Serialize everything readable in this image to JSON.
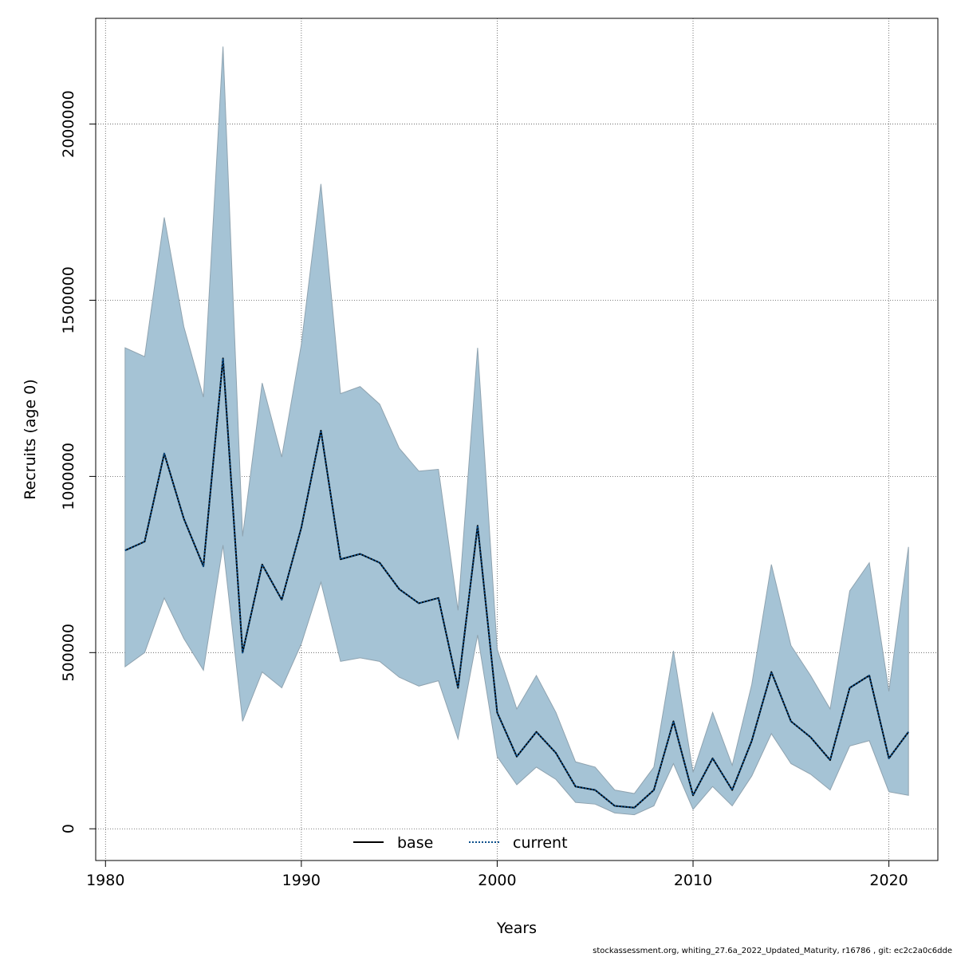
{
  "chart_data": {
    "type": "area",
    "title": "",
    "xlabel": "Years",
    "ylabel": "Recruits (age 0)",
    "xlim": [
      1979.5,
      2022.5
    ],
    "ylim": [
      -90000,
      2300000
    ],
    "x_ticks": [
      1980,
      1990,
      2000,
      2010,
      2020
    ],
    "y_ticks": [
      0,
      500000,
      1000000,
      1500000,
      2000000
    ],
    "x_tick_labels": [
      "1980",
      "1990",
      "2000",
      "2010",
      "2020"
    ],
    "y_tick_labels": [
      "0",
      "500000",
      "1000000",
      "1500000",
      "2000000"
    ],
    "grid": true,
    "legend_position": "bottom-center",
    "years": [
      1981,
      1982,
      1983,
      1984,
      1985,
      1986,
      1987,
      1988,
      1989,
      1990,
      1991,
      1992,
      1993,
      1994,
      1995,
      1996,
      1997,
      1998,
      1999,
      2000,
      2001,
      2002,
      2003,
      2004,
      2005,
      2006,
      2007,
      2008,
      2009,
      2010,
      2011,
      2012,
      2013,
      2014,
      2015,
      2016,
      2017,
      2018,
      2019,
      2020,
      2021
    ],
    "series": [
      {
        "name": "base",
        "line_style": "solid",
        "color": "#000000",
        "values": [
          790000,
          815000,
          1065000,
          880000,
          745000,
          1335000,
          500000,
          750000,
          650000,
          855000,
          1130000,
          765000,
          780000,
          755000,
          680000,
          640000,
          655000,
          400000,
          860000,
          330000,
          205000,
          275000,
          215000,
          120000,
          110000,
          65000,
          60000,
          110000,
          305000,
          95000,
          200000,
          110000,
          250000,
          445000,
          305000,
          260000,
          195000,
          400000,
          435000,
          200000,
          275000
        ]
      },
      {
        "name": "current",
        "line_style": "dotted",
        "color": "#0a4f8c",
        "values": [
          790000,
          815000,
          1065000,
          880000,
          745000,
          1335000,
          500000,
          750000,
          650000,
          855000,
          1130000,
          765000,
          780000,
          755000,
          680000,
          640000,
          655000,
          400000,
          860000,
          330000,
          205000,
          275000,
          215000,
          120000,
          110000,
          65000,
          60000,
          110000,
          305000,
          95000,
          200000,
          110000,
          250000,
          445000,
          305000,
          260000,
          195000,
          400000,
          435000,
          200000,
          275000
        ]
      }
    ],
    "confidence_band": {
      "color": "#a5c3d5",
      "upper": [
        1365000,
        1340000,
        1735000,
        1425000,
        1225000,
        2220000,
        830000,
        1265000,
        1055000,
        1375000,
        1830000,
        1235000,
        1255000,
        1205000,
        1080000,
        1015000,
        1020000,
        620000,
        1365000,
        510000,
        340000,
        435000,
        330000,
        190000,
        175000,
        110000,
        100000,
        175000,
        505000,
        160000,
        330000,
        180000,
        410000,
        750000,
        520000,
        435000,
        340000,
        675000,
        755000,
        390000,
        800000
      ],
      "lower": [
        460000,
        500000,
        655000,
        540000,
        450000,
        805000,
        305000,
        445000,
        400000,
        525000,
        700000,
        475000,
        485000,
        475000,
        430000,
        405000,
        420000,
        255000,
        550000,
        205000,
        125000,
        175000,
        140000,
        75000,
        70000,
        45000,
        40000,
        65000,
        185000,
        55000,
        120000,
        65000,
        150000,
        270000,
        185000,
        155000,
        110000,
        235000,
        250000,
        105000,
        95000
      ]
    }
  },
  "legend": {
    "base_label": "base",
    "current_label": "current"
  },
  "footer": {
    "text": "stockassessment.org, whiting_27.6a_2022_Updated_Maturity, r16786 , git: ec2c2a0c6dde"
  }
}
